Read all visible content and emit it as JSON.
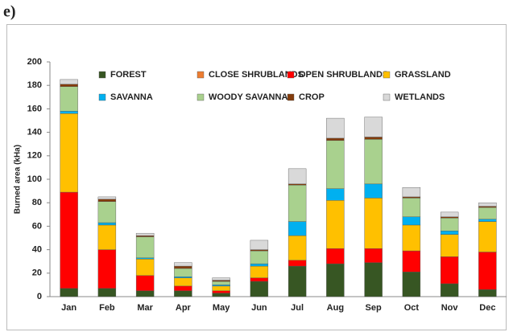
{
  "label": "e)",
  "chart_data": {
    "type": "stacked_bar",
    "ylabel": "Burned area (kHa)",
    "categories": [
      "Jan",
      "Feb",
      "Mar",
      "Apr",
      "May",
      "Jun",
      "Jul",
      "Aug",
      "Sep",
      "Oct",
      "Nov",
      "Dec"
    ],
    "ylim": [
      0,
      200
    ],
    "yticks": [
      0,
      20,
      40,
      60,
      80,
      100,
      120,
      140,
      160,
      180,
      200
    ],
    "grid": false,
    "legend": "top",
    "series": [
      {
        "name": "FOREST",
        "color": "#375623",
        "values": [
          7,
          7,
          5,
          5,
          3,
          13,
          26,
          28,
          29,
          21,
          11,
          6
        ]
      },
      {
        "name": "CLOSE SHRUBLANDS",
        "color": "#ed7d31",
        "values": [
          0,
          0,
          0,
          0,
          0,
          0,
          0,
          0,
          0,
          0,
          0,
          0
        ]
      },
      {
        "name": "OPEN SHRUBLANDS",
        "color": "#ff0000",
        "values": [
          82,
          33,
          13,
          4,
          2,
          3,
          5,
          13,
          12,
          18,
          23,
          32
        ]
      },
      {
        "name": "GRASSLAND",
        "color": "#ffc000",
        "values": [
          67,
          21,
          14,
          7,
          4,
          10,
          21,
          41,
          43,
          22,
          19,
          26
        ]
      },
      {
        "name": "SAVANNA",
        "color": "#00b0f0",
        "values": [
          2,
          2,
          1,
          1,
          1,
          2,
          12,
          10,
          12,
          7,
          3,
          2
        ]
      },
      {
        "name": "WOODY SAVANNA",
        "color": "#a9d18e",
        "values": [
          21,
          18,
          18,
          7,
          3,
          11,
          31,
          41,
          38,
          16,
          11,
          10
        ]
      },
      {
        "name": "CROP",
        "color": "#843c0c",
        "values": [
          2,
          2,
          1,
          2,
          1,
          1,
          1,
          2,
          2,
          1,
          1,
          1
        ]
      },
      {
        "name": "WETLANDS",
        "color": "#d9d9d9",
        "values": [
          4,
          2,
          2,
          3,
          2,
          8,
          13,
          17,
          17,
          8,
          4,
          3
        ]
      }
    ]
  }
}
